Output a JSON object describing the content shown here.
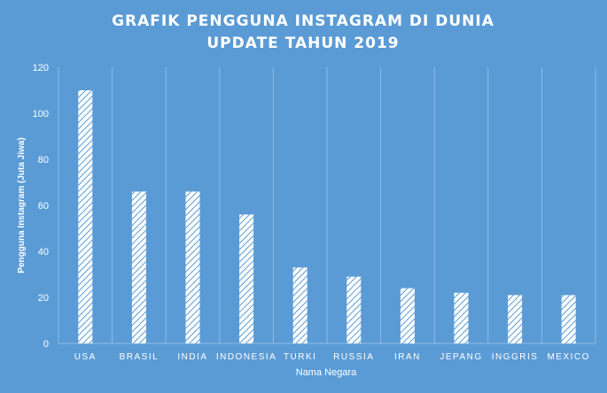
{
  "chart_data": {
    "type": "bar",
    "title_line1": "GRAFIK PENGGUNA INSTAGRAM  DI DUNIA",
    "title_line2": "UPDATE TAHUN 2019",
    "xlabel": "Nama Negara",
    "ylabel": "Pengguna Instagram (Juta Jiwa)",
    "ylim": [
      0,
      120
    ],
    "yticks": [
      "0",
      "20",
      "40",
      "60",
      "80",
      "100",
      "120"
    ],
    "grid": "vertical category lines",
    "categories": [
      "USA",
      "BRASIL",
      "INDIA",
      "INDONESIA",
      "TURKI",
      "RUSSIA",
      "IRAN",
      "JEPANG",
      "INGGRIS",
      "MEXICO"
    ],
    "values": [
      110,
      66,
      66,
      56,
      33,
      29,
      24,
      22,
      21,
      21
    ],
    "colors": {
      "background": "#5b9bd5",
      "bar_fill": "#ffffff",
      "bar_hatch": "#5b9bd5",
      "text": "#ffffff",
      "grid": "#8fbbe6"
    }
  }
}
